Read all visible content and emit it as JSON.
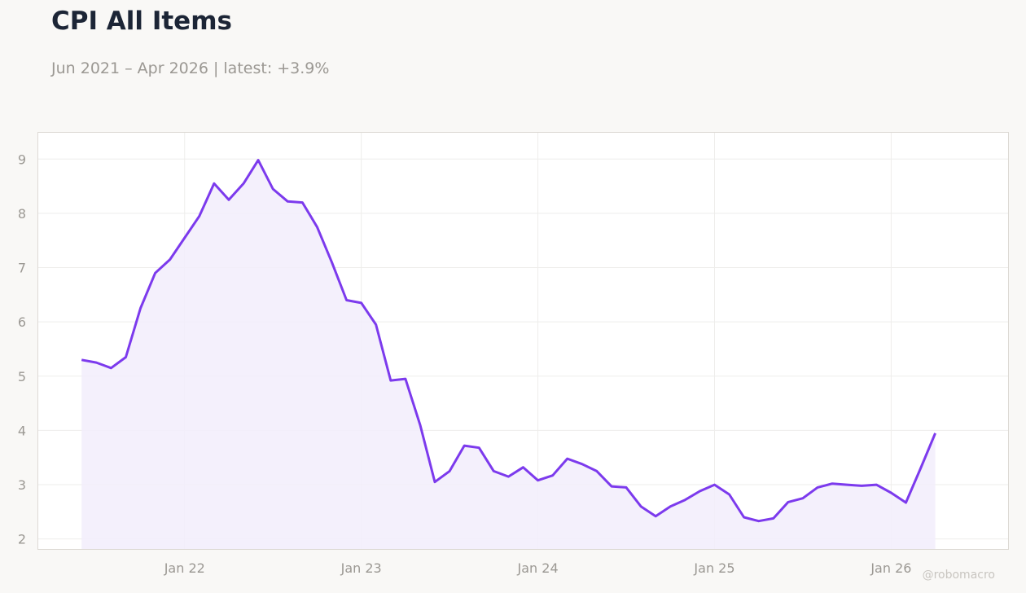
{
  "title": "CPI All Items",
  "subtitle": "Jun 2021 – Apr 2026 | latest: +3.9%",
  "watermark": "@robomacro",
  "colors": {
    "line": "#7c3aed",
    "fill": "#f2edfc",
    "grid": "#eeedeb",
    "frame": "#dddad5",
    "plot_bg": "#ffffff",
    "page_bg": "#f9f8f6"
  },
  "chart_data": {
    "type": "area",
    "title": "CPI All Items",
    "subtitle": "Jun 2021 – Apr 2026 | latest: +3.9%",
    "xlabel": "",
    "ylabel": "",
    "ylim": [
      1.8,
      9.5
    ],
    "yticks": [
      2,
      3,
      4,
      5,
      6,
      7,
      8,
      9
    ],
    "xticks": [
      {
        "date": "2022-01",
        "label": "Jan 22"
      },
      {
        "date": "2023-01",
        "label": "Jan 23"
      },
      {
        "date": "2024-01",
        "label": "Jan 24"
      },
      {
        "date": "2025-01",
        "label": "Jan 25"
      },
      {
        "date": "2026-01",
        "label": "Jan 26"
      }
    ],
    "xlim": [
      "2021-03",
      "2026-09"
    ],
    "grid": true,
    "legend": "none",
    "series": [
      {
        "x": [
          "2021-06",
          "2021-07",
          "2021-08",
          "2021-09",
          "2021-10",
          "2021-11",
          "2021-12",
          "2022-01",
          "2022-02",
          "2022-03",
          "2022-04",
          "2022-05",
          "2022-06",
          "2022-07",
          "2022-08",
          "2022-09",
          "2022-10",
          "2022-11",
          "2022-12",
          "2023-01",
          "2023-02",
          "2023-03",
          "2023-04",
          "2023-05",
          "2023-06",
          "2023-07",
          "2023-08",
          "2023-09",
          "2023-10",
          "2023-11",
          "2023-12",
          "2024-01",
          "2024-02",
          "2024-03",
          "2024-04",
          "2024-05",
          "2024-06",
          "2024-07",
          "2024-08",
          "2024-09",
          "2024-10",
          "2024-11",
          "2024-12",
          "2025-01",
          "2025-02",
          "2025-03",
          "2025-04",
          "2025-05",
          "2025-06",
          "2025-07",
          "2025-08",
          "2025-09",
          "2025-10",
          "2025-11",
          "2025-12",
          "2026-01",
          "2026-02",
          "2026-03",
          "2026-04"
        ],
        "values": [
          5.3,
          5.25,
          5.15,
          5.35,
          6.25,
          6.9,
          7.15,
          7.55,
          7.95,
          8.55,
          8.25,
          8.55,
          8.98,
          8.45,
          8.22,
          8.2,
          7.75,
          7.1,
          6.4,
          6.35,
          5.95,
          4.92,
          4.95,
          4.1,
          3.05,
          3.25,
          3.72,
          3.68,
          3.25,
          3.15,
          3.32,
          3.08,
          3.17,
          3.48,
          3.38,
          3.25,
          2.97,
          2.95,
          2.6,
          2.42,
          2.6,
          2.72,
          2.88,
          3.0,
          2.82,
          2.4,
          2.33,
          2.38,
          2.68,
          2.75,
          2.95,
          3.02,
          3.0,
          2.98,
          3.0,
          2.85,
          2.67,
          3.3,
          3.95
        ]
      }
    ]
  }
}
